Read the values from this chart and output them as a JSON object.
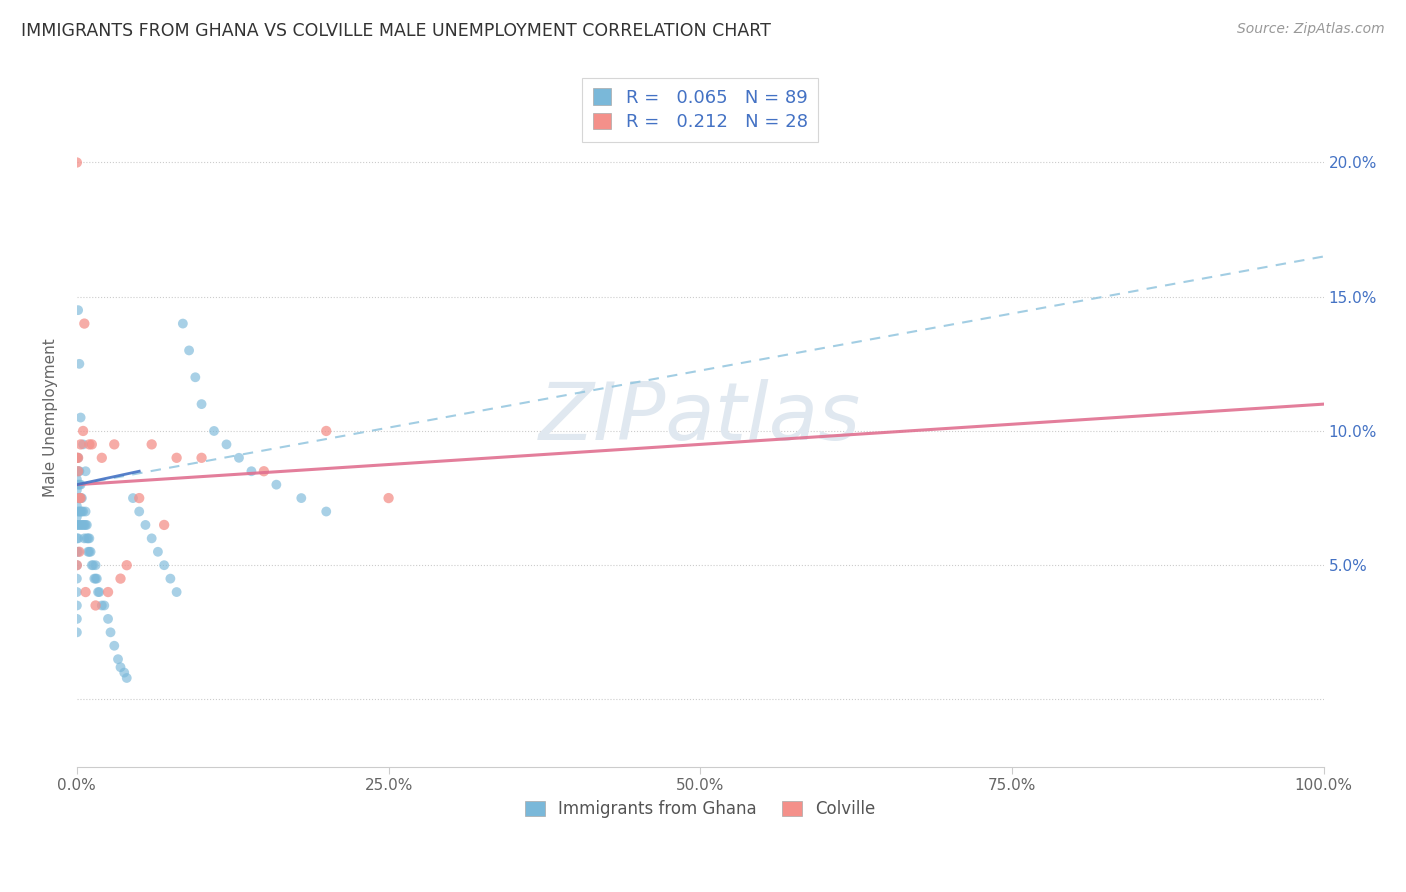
{
  "title": "IMMIGRANTS FROM GHANA VS COLVILLE MALE UNEMPLOYMENT CORRELATION CHART",
  "source": "Source: ZipAtlas.com",
  "ylabel": "Male Unemployment",
  "legend_label1": "Immigrants from Ghana",
  "legend_label2": "Colville",
  "r1": 0.065,
  "n1": 89,
  "r2": 0.212,
  "n2": 28,
  "color1": "#7ab8d9",
  "color2": "#f4908a",
  "trendline1_color": "#92c5de",
  "trendline2_color": "#e07090",
  "xlim": [
    0.0,
    1.0
  ],
  "ylim": [
    -0.025,
    0.235
  ],
  "ghana_x": [
    0.0,
    0.0,
    0.0,
    0.0,
    0.0,
    0.0,
    0.0,
    0.0,
    0.0,
    0.0,
    0.0,
    0.0,
    0.0,
    0.0,
    0.0,
    0.001,
    0.001,
    0.001,
    0.001,
    0.001,
    0.001,
    0.001,
    0.001,
    0.002,
    0.002,
    0.002,
    0.002,
    0.002,
    0.003,
    0.003,
    0.003,
    0.003,
    0.004,
    0.004,
    0.004,
    0.005,
    0.005,
    0.006,
    0.006,
    0.007,
    0.007,
    0.008,
    0.008,
    0.009,
    0.009,
    0.01,
    0.01,
    0.011,
    0.012,
    0.013,
    0.014,
    0.015,
    0.015,
    0.016,
    0.017,
    0.018,
    0.02,
    0.022,
    0.025,
    0.027,
    0.03,
    0.033,
    0.035,
    0.038,
    0.04,
    0.045,
    0.05,
    0.055,
    0.06,
    0.065,
    0.07,
    0.075,
    0.08,
    0.085,
    0.09,
    0.095,
    0.1,
    0.11,
    0.12,
    0.13,
    0.14,
    0.16,
    0.18,
    0.2,
    0.001,
    0.002,
    0.003,
    0.005,
    0.007
  ],
  "ghana_y": [
    0.09,
    0.082,
    0.078,
    0.075,
    0.072,
    0.068,
    0.065,
    0.06,
    0.055,
    0.05,
    0.045,
    0.04,
    0.035,
    0.03,
    0.025,
    0.09,
    0.085,
    0.08,
    0.075,
    0.07,
    0.065,
    0.06,
    0.055,
    0.085,
    0.08,
    0.075,
    0.07,
    0.065,
    0.08,
    0.075,
    0.07,
    0.065,
    0.075,
    0.07,
    0.065,
    0.07,
    0.065,
    0.065,
    0.06,
    0.07,
    0.065,
    0.065,
    0.06,
    0.06,
    0.055,
    0.06,
    0.055,
    0.055,
    0.05,
    0.05,
    0.045,
    0.05,
    0.045,
    0.045,
    0.04,
    0.04,
    0.035,
    0.035,
    0.03,
    0.025,
    0.02,
    0.015,
    0.012,
    0.01,
    0.008,
    0.075,
    0.07,
    0.065,
    0.06,
    0.055,
    0.05,
    0.045,
    0.04,
    0.14,
    0.13,
    0.12,
    0.11,
    0.1,
    0.095,
    0.09,
    0.085,
    0.08,
    0.075,
    0.07,
    0.145,
    0.125,
    0.105,
    0.095,
    0.085
  ],
  "colville_x": [
    0.0,
    0.0,
    0.0,
    0.001,
    0.001,
    0.002,
    0.002,
    0.003,
    0.003,
    0.005,
    0.006,
    0.007,
    0.01,
    0.012,
    0.015,
    0.02,
    0.025,
    0.03,
    0.035,
    0.04,
    0.05,
    0.06,
    0.07,
    0.08,
    0.1,
    0.15,
    0.2,
    0.25
  ],
  "colville_y": [
    0.2,
    0.09,
    0.05,
    0.09,
    0.085,
    0.075,
    0.055,
    0.095,
    0.075,
    0.1,
    0.14,
    0.04,
    0.095,
    0.095,
    0.035,
    0.09,
    0.04,
    0.095,
    0.045,
    0.05,
    0.075,
    0.095,
    0.065,
    0.09,
    0.09,
    0.085,
    0.1,
    0.075
  ],
  "trendline1_x0": 0.0,
  "trendline1_y0": 0.08,
  "trendline1_x1": 1.0,
  "trendline1_y1": 0.165,
  "trendline2_x0": 0.0,
  "trendline2_y0": 0.08,
  "trendline2_x1": 1.0,
  "trendline2_y1": 0.11
}
